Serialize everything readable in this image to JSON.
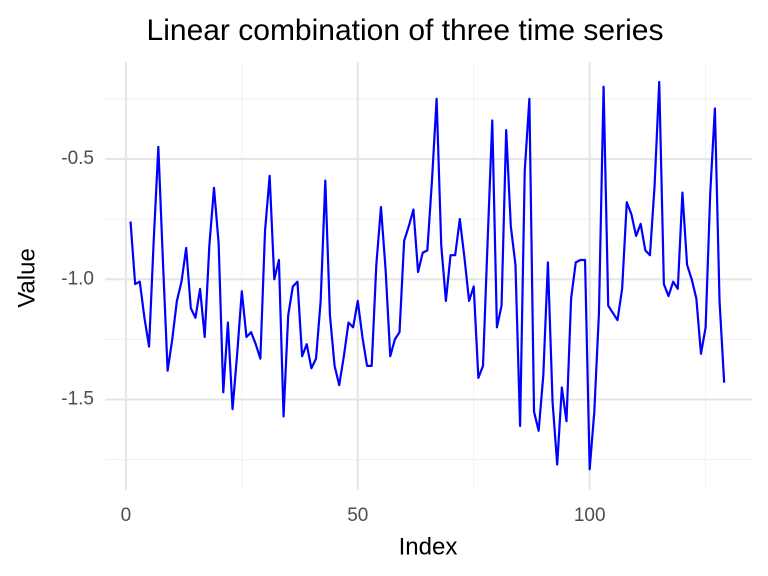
{
  "chart_data": {
    "type": "line",
    "title": "Linear combination of three time series",
    "x_label": "Index",
    "y_label": "Value",
    "x": [
      1,
      2,
      3,
      4,
      5,
      6,
      7,
      8,
      9,
      10,
      11,
      12,
      13,
      14,
      15,
      16,
      17,
      18,
      19,
      20,
      21,
      22,
      23,
      24,
      25,
      26,
      27,
      28,
      29,
      30,
      31,
      32,
      33,
      34,
      35,
      36,
      37,
      38,
      39,
      40,
      41,
      42,
      43,
      44,
      45,
      46,
      47,
      48,
      49,
      50,
      51,
      52,
      53,
      54,
      55,
      56,
      57,
      58,
      59,
      60,
      61,
      62,
      63,
      64,
      65,
      66,
      67,
      68,
      69,
      70,
      71,
      72,
      73,
      74,
      75,
      76,
      77,
      78,
      79,
      80,
      81,
      82,
      83,
      84,
      85,
      86,
      87,
      88,
      89,
      90,
      91,
      92,
      93,
      94,
      95,
      96,
      97,
      98,
      99,
      100,
      101,
      102,
      103,
      104,
      105,
      106,
      107,
      108,
      109,
      110,
      111,
      112,
      113,
      114,
      115,
      116,
      117,
      118,
      119,
      120,
      121,
      122,
      123,
      124,
      125,
      126,
      127,
      128,
      129
    ],
    "series": [
      {
        "color": "#0000ff",
        "values": [
          -0.76,
          -1.02,
          -1.01,
          -1.16,
          -1.28,
          -0.84,
          -0.45,
          -0.93,
          -1.38,
          -1.25,
          -1.09,
          -1.01,
          -0.87,
          -1.12,
          -1.16,
          -1.04,
          -1.24,
          -0.86,
          -0.62,
          -0.85,
          -1.47,
          -1.18,
          -1.54,
          -1.31,
          -1.05,
          -1.24,
          -1.22,
          -1.27,
          -1.33,
          -0.8,
          -0.57,
          -1.0,
          -0.92,
          -1.57,
          -1.15,
          -1.03,
          -1.01,
          -1.32,
          -1.27,
          -1.37,
          -1.33,
          -1.09,
          -0.59,
          -1.15,
          -1.36,
          -1.44,
          -1.32,
          -1.18,
          -1.2,
          -1.09,
          -1.24,
          -1.36,
          -1.36,
          -0.94,
          -0.7,
          -0.96,
          -1.32,
          -1.25,
          -1.22,
          -0.84,
          -0.78,
          -0.71,
          -0.97,
          -0.89,
          -0.88,
          -0.59,
          -0.25,
          -0.86,
          -1.09,
          -0.9,
          -0.9,
          -0.75,
          -0.91,
          -1.09,
          -1.03,
          -1.41,
          -1.36,
          -0.84,
          -0.34,
          -1.2,
          -1.11,
          -0.38,
          -0.78,
          -0.94,
          -1.61,
          -0.55,
          -0.25,
          -1.55,
          -1.63,
          -1.4,
          -0.93,
          -1.51,
          -1.77,
          -1.45,
          -1.59,
          -1.08,
          -0.93,
          -0.92,
          -0.92,
          -1.79,
          -1.55,
          -1.14,
          -0.2,
          -1.11,
          -1.14,
          -1.17,
          -1.04,
          -0.68,
          -0.73,
          -0.82,
          -0.77,
          -0.88,
          -0.9,
          -0.61,
          -0.18,
          -1.02,
          -1.07,
          -1.01,
          -1.04,
          -0.64,
          -0.94,
          -1.0,
          -1.08,
          -1.31,
          -1.2,
          -0.64,
          -0.29,
          -1.09,
          -1.43
        ]
      }
    ],
    "xlim": [
      -4.5,
      135
    ],
    "ylim": [
      -1.876,
      -0.097
    ],
    "xticks": [
      0,
      50,
      100
    ],
    "yticks": [
      -1.5,
      {
        "value": -1,
        "label": "-1.0"
      },
      -0.5
    ],
    "x_minor_ticks": [
      25,
      75,
      125
    ],
    "y_minor_ticks": [
      -1.75,
      -1.25,
      -0.75,
      -0.25
    ],
    "grid": true
  }
}
